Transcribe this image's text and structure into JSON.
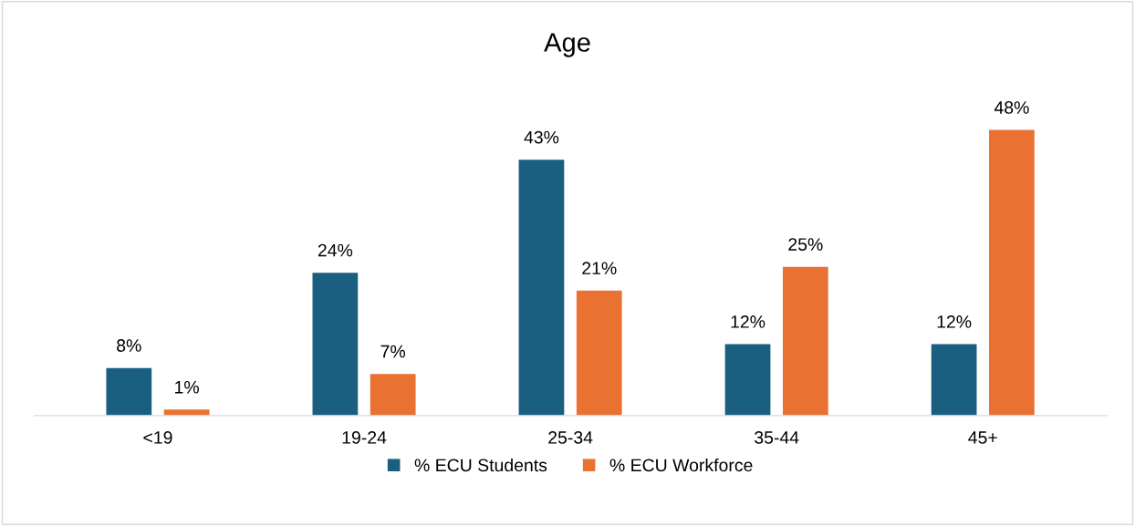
{
  "chart_data": {
    "type": "bar",
    "title": "Age",
    "categories": [
      "<19",
      "19-24",
      "25-34",
      "35-44",
      "45+"
    ],
    "series": [
      {
        "name": "% ECU Students",
        "color": "#1a5e80",
        "values": [
          8,
          24,
          43,
          12,
          12
        ],
        "value_labels": [
          "8%",
          "24%",
          "43%",
          "12%",
          "12%"
        ]
      },
      {
        "name": "% ECU Workforce",
        "color": "#e97132",
        "values": [
          1,
          7,
          21,
          25,
          48
        ],
        "value_labels": [
          "1%",
          "7%",
          "21%",
          "25%",
          "48%"
        ]
      }
    ],
    "legend": "bottom",
    "grid": false
  }
}
